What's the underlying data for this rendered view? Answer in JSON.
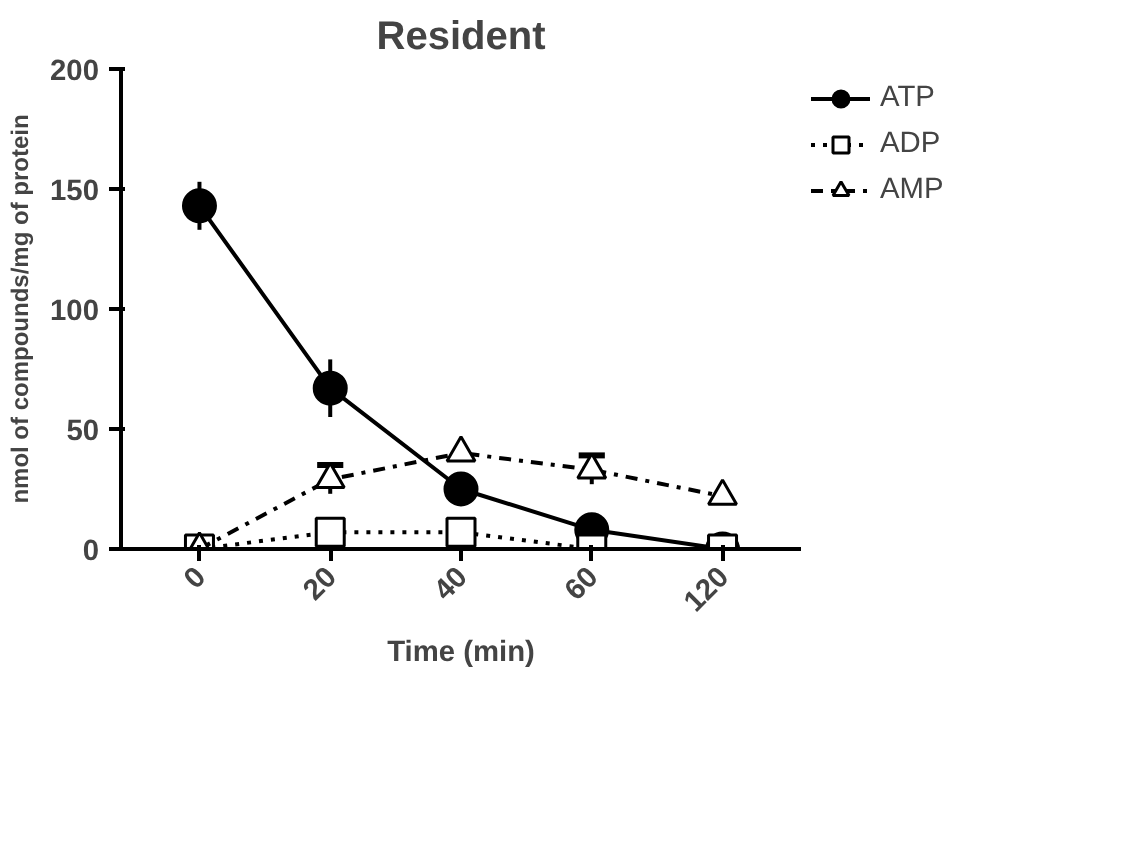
{
  "chart_data": {
    "type": "line",
    "title": "Resident",
    "xlabel": "Time (min)",
    "ylabel": "nmol of compounds/mg of protein",
    "categories": [
      "0",
      "20",
      "40",
      "60",
      "120"
    ],
    "series": [
      {
        "name": "ATP",
        "color": "#000000",
        "values": [
          143,
          67,
          25,
          8,
          0
        ],
        "errors": [
          10,
          12,
          null,
          null,
          null
        ],
        "marker": "circle",
        "line_style": "solid"
      },
      {
        "name": "ADP",
        "color": "#000000",
        "values": [
          0,
          7,
          7,
          0,
          0
        ],
        "marker": "square",
        "line_style": "dotted"
      },
      {
        "name": "AMP",
        "color": "#000000",
        "values": [
          0,
          29,
          40,
          33,
          22
        ],
        "errors": [
          null,
          6,
          null,
          6,
          null
        ],
        "marker": "triangle",
        "line_style": "dashdot"
      }
    ],
    "ylim": [
      0,
      200
    ],
    "yticks": [
      0,
      50,
      100,
      150,
      200
    ],
    "grid": false,
    "legend": "top right"
  }
}
